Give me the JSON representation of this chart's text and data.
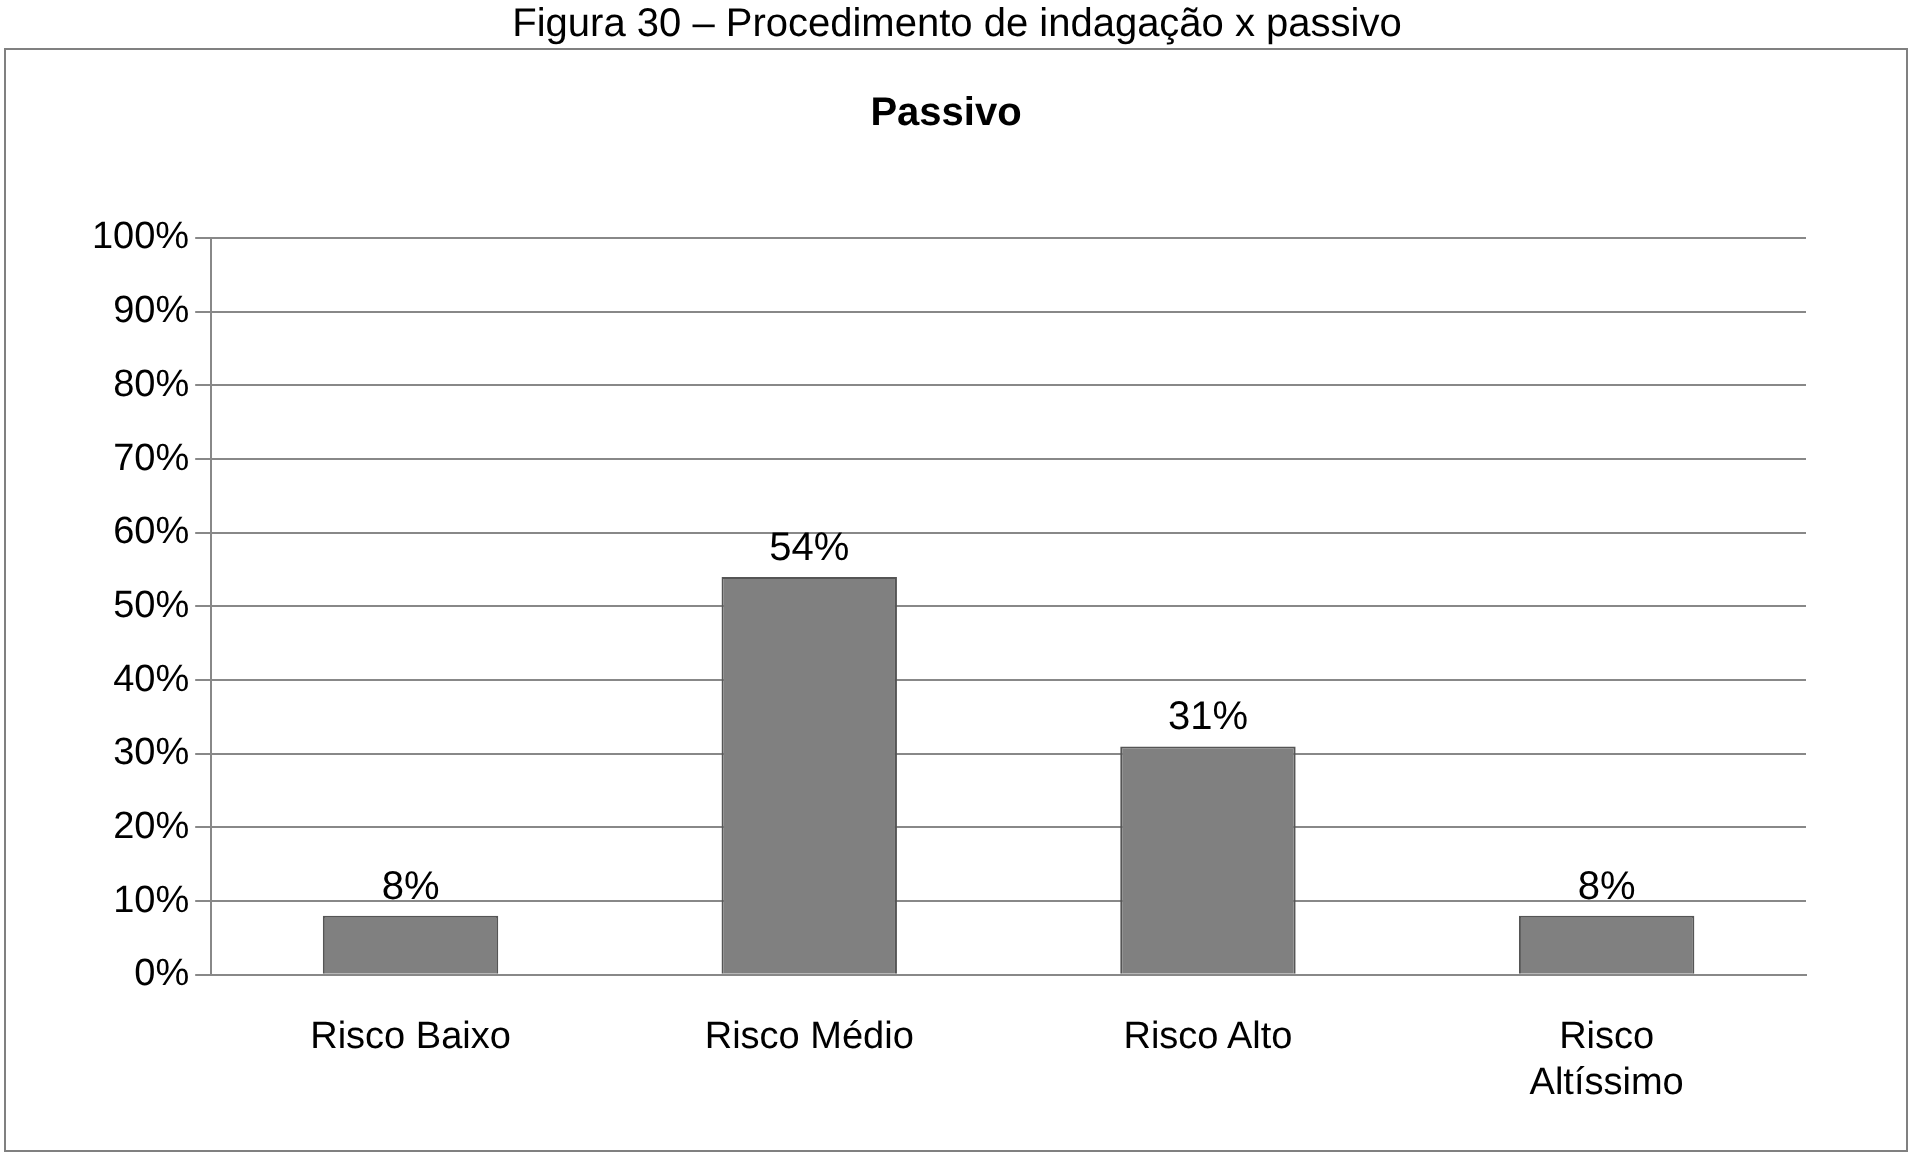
{
  "chart_data": {
    "type": "bar",
    "title": "Passivo",
    "annotations": [
      "Figura 30 – Procedimento de indagação x passivo"
    ],
    "categories": [
      "Risco Baixo",
      "Risco Médio",
      "Risco Alto",
      "Risco Altíssimo"
    ],
    "values": [
      8,
      54,
      31,
      8
    ],
    "color": "#808080",
    "value_labels": [
      "8%",
      "54%",
      "31%",
      "8%"
    ],
    "ylim": [
      0,
      100
    ],
    "yticks": [
      {
        "value": 0,
        "label": "0%"
      },
      {
        "value": 10,
        "label": "10%"
      },
      {
        "value": 20,
        "label": "20%"
      },
      {
        "value": 30,
        "label": "30%"
      },
      {
        "value": 40,
        "label": "40%"
      },
      {
        "value": 50,
        "label": "50%"
      },
      {
        "value": 60,
        "label": "60%"
      },
      {
        "value": 70,
        "label": "70%"
      },
      {
        "value": 80,
        "label": "80%"
      },
      {
        "value": 90,
        "label": "90%"
      },
      {
        "value": 100,
        "label": "100%"
      }
    ],
    "grid": "y",
    "legend": false
  }
}
